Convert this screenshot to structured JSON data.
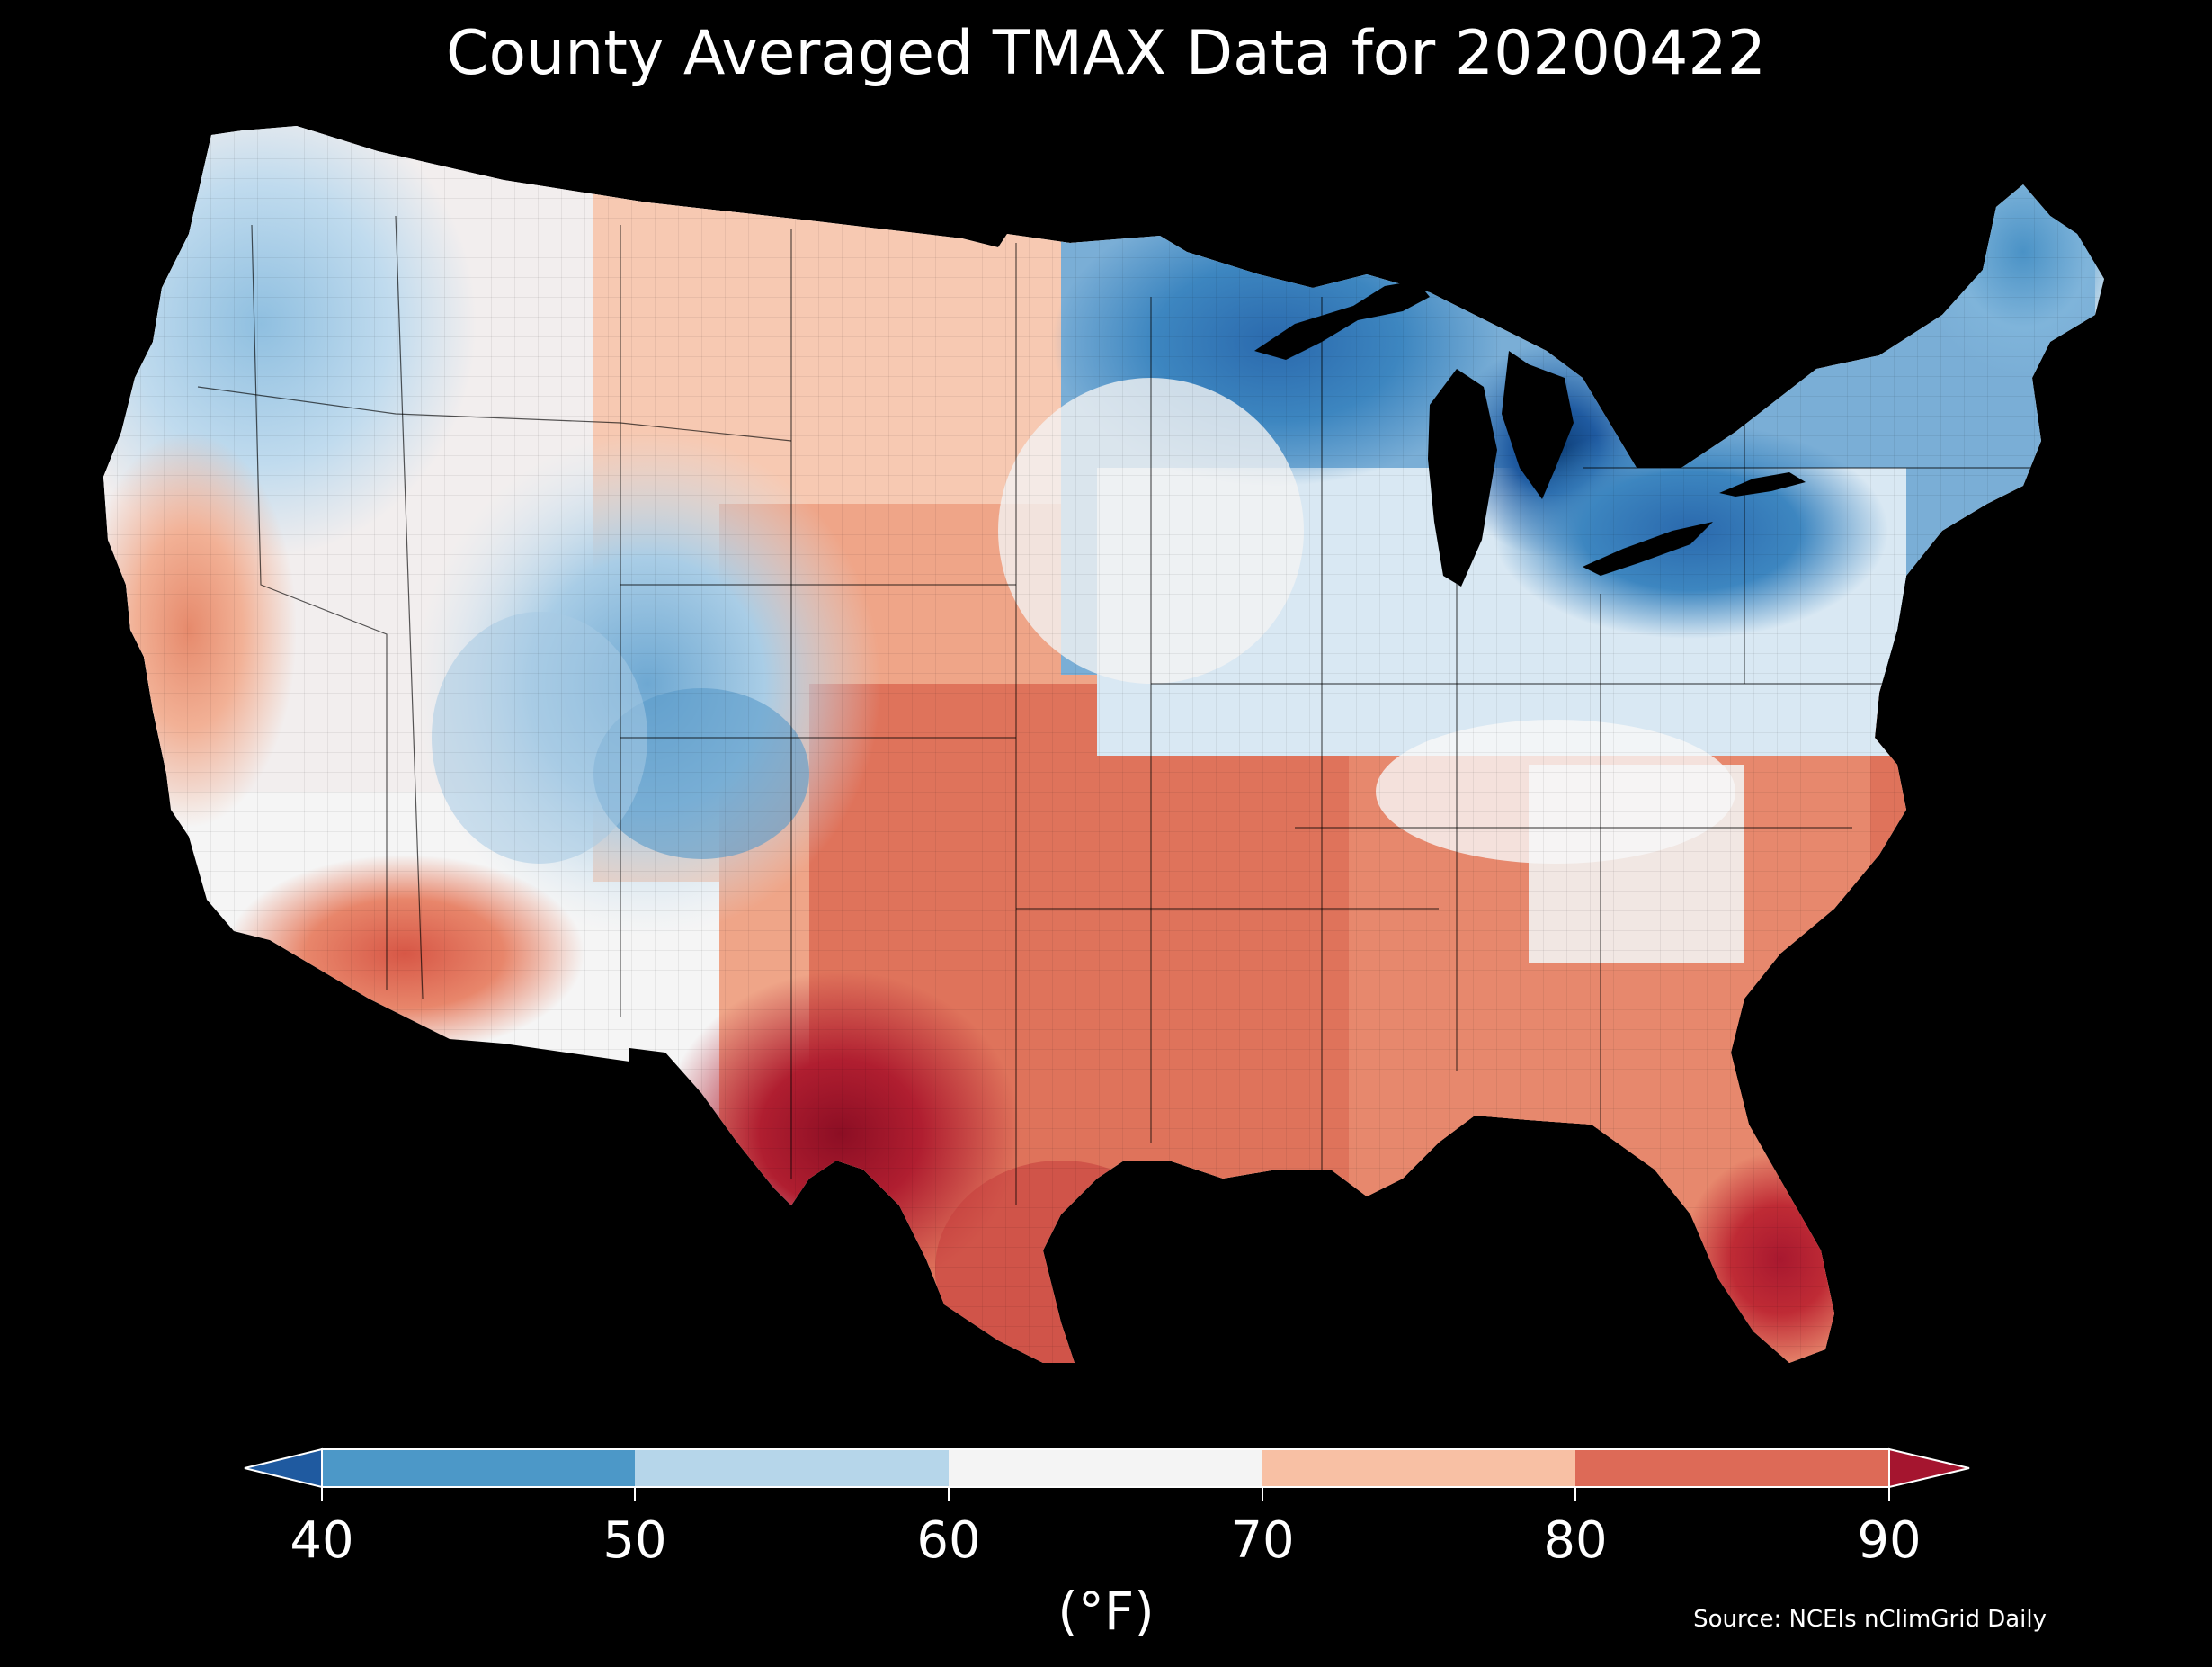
{
  "title": "County Averaged TMAX Data for 20200422",
  "colorbar": {
    "ticks": [
      "40",
      "50",
      "60",
      "70",
      "80",
      "90"
    ],
    "unit_label": "(°F)",
    "bins": [
      {
        "range": "<40",
        "color": "#1f5aa0"
      },
      {
        "range": "40-50",
        "color": "#4c98c8"
      },
      {
        "range": "50-60",
        "color": "#b6d6ea"
      },
      {
        "range": "60-70",
        "color": "#f4f4f4"
      },
      {
        "range": "70-80",
        "color": "#f8c0a4"
      },
      {
        "range": "80-90",
        "color": "#dd6a57"
      },
      {
        "range": ">90",
        "color": "#a5152f"
      }
    ]
  },
  "source": "Source: NCEIs nClimGrid Daily",
  "palette": {
    "background": "#000000",
    "deep_blue": "#1f5aa0",
    "blue": "#4c98c8",
    "light_blue": "#b6d6ea",
    "near_white": "#f4f4f4",
    "light_red": "#f8c0a4",
    "red": "#dd6a57",
    "deep_red": "#a5152f"
  }
}
